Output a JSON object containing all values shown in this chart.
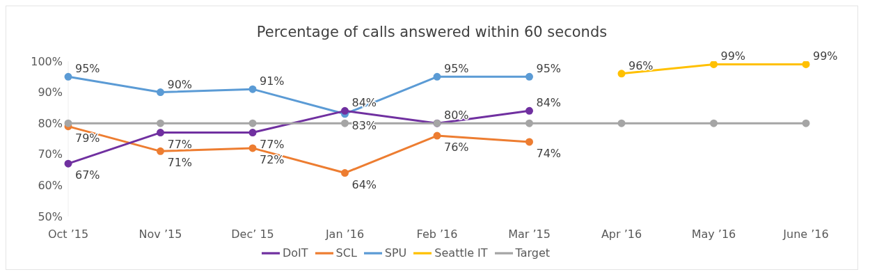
{
  "chart_data": {
    "type": "line",
    "title": "Percentage of calls answered within 60 seconds",
    "categories": [
      "Oct ’15",
      "Nov ’15",
      "Dec’ 15",
      "Jan ’16",
      "Feb ’16",
      "Mar ’15",
      "Apr ’16",
      "May ’16",
      "June ’16"
    ],
    "series": [
      {
        "name": "SPU",
        "color": "#5b9bd5",
        "values": [
          95,
          90,
          91,
          83,
          95,
          95,
          null,
          null,
          null
        ],
        "value_labels": [
          "95%",
          "90%",
          "91%",
          "83%",
          "95%",
          "95%",
          null,
          null,
          null
        ]
      },
      {
        "name": "SCL",
        "color": "#ed7d31",
        "values": [
          79,
          71,
          72,
          64,
          76,
          74,
          null,
          null,
          null
        ],
        "value_labels": [
          "79%",
          "71%",
          "72%",
          "64%",
          "76%",
          "74%",
          null,
          null,
          null
        ]
      },
      {
        "name": "DoIT",
        "color": "#7030a0",
        "values": [
          67,
          77,
          77,
          84,
          80,
          84,
          null,
          null,
          null
        ],
        "value_labels": [
          "67%",
          "77%",
          "77%",
          "84%",
          "80%",
          "84%",
          null,
          null,
          null
        ]
      },
      {
        "name": "Seattle IT",
        "color": "#ffc000",
        "values": [
          null,
          null,
          null,
          null,
          null,
          null,
          96,
          99,
          99
        ],
        "value_labels": [
          null,
          null,
          null,
          null,
          null,
          null,
          "96%",
          "99%",
          "99%"
        ]
      },
      {
        "name": "Target",
        "color": "#a5a5a5",
        "values": [
          80,
          80,
          80,
          80,
          80,
          80,
          80,
          80,
          80
        ]
      }
    ],
    "ylim": [
      50,
      100
    ],
    "yticks": [
      {
        "value": 50,
        "label": "50%"
      },
      {
        "value": 60,
        "label": "60%"
      },
      {
        "value": 70,
        "label": "70%"
      },
      {
        "value": 80,
        "label": "80%"
      },
      {
        "value": 90,
        "label": "90%"
      },
      {
        "value": 100,
        "label": "100%"
      }
    ],
    "legend": "bottom",
    "marker": "circle",
    "line_style": "solid"
  }
}
